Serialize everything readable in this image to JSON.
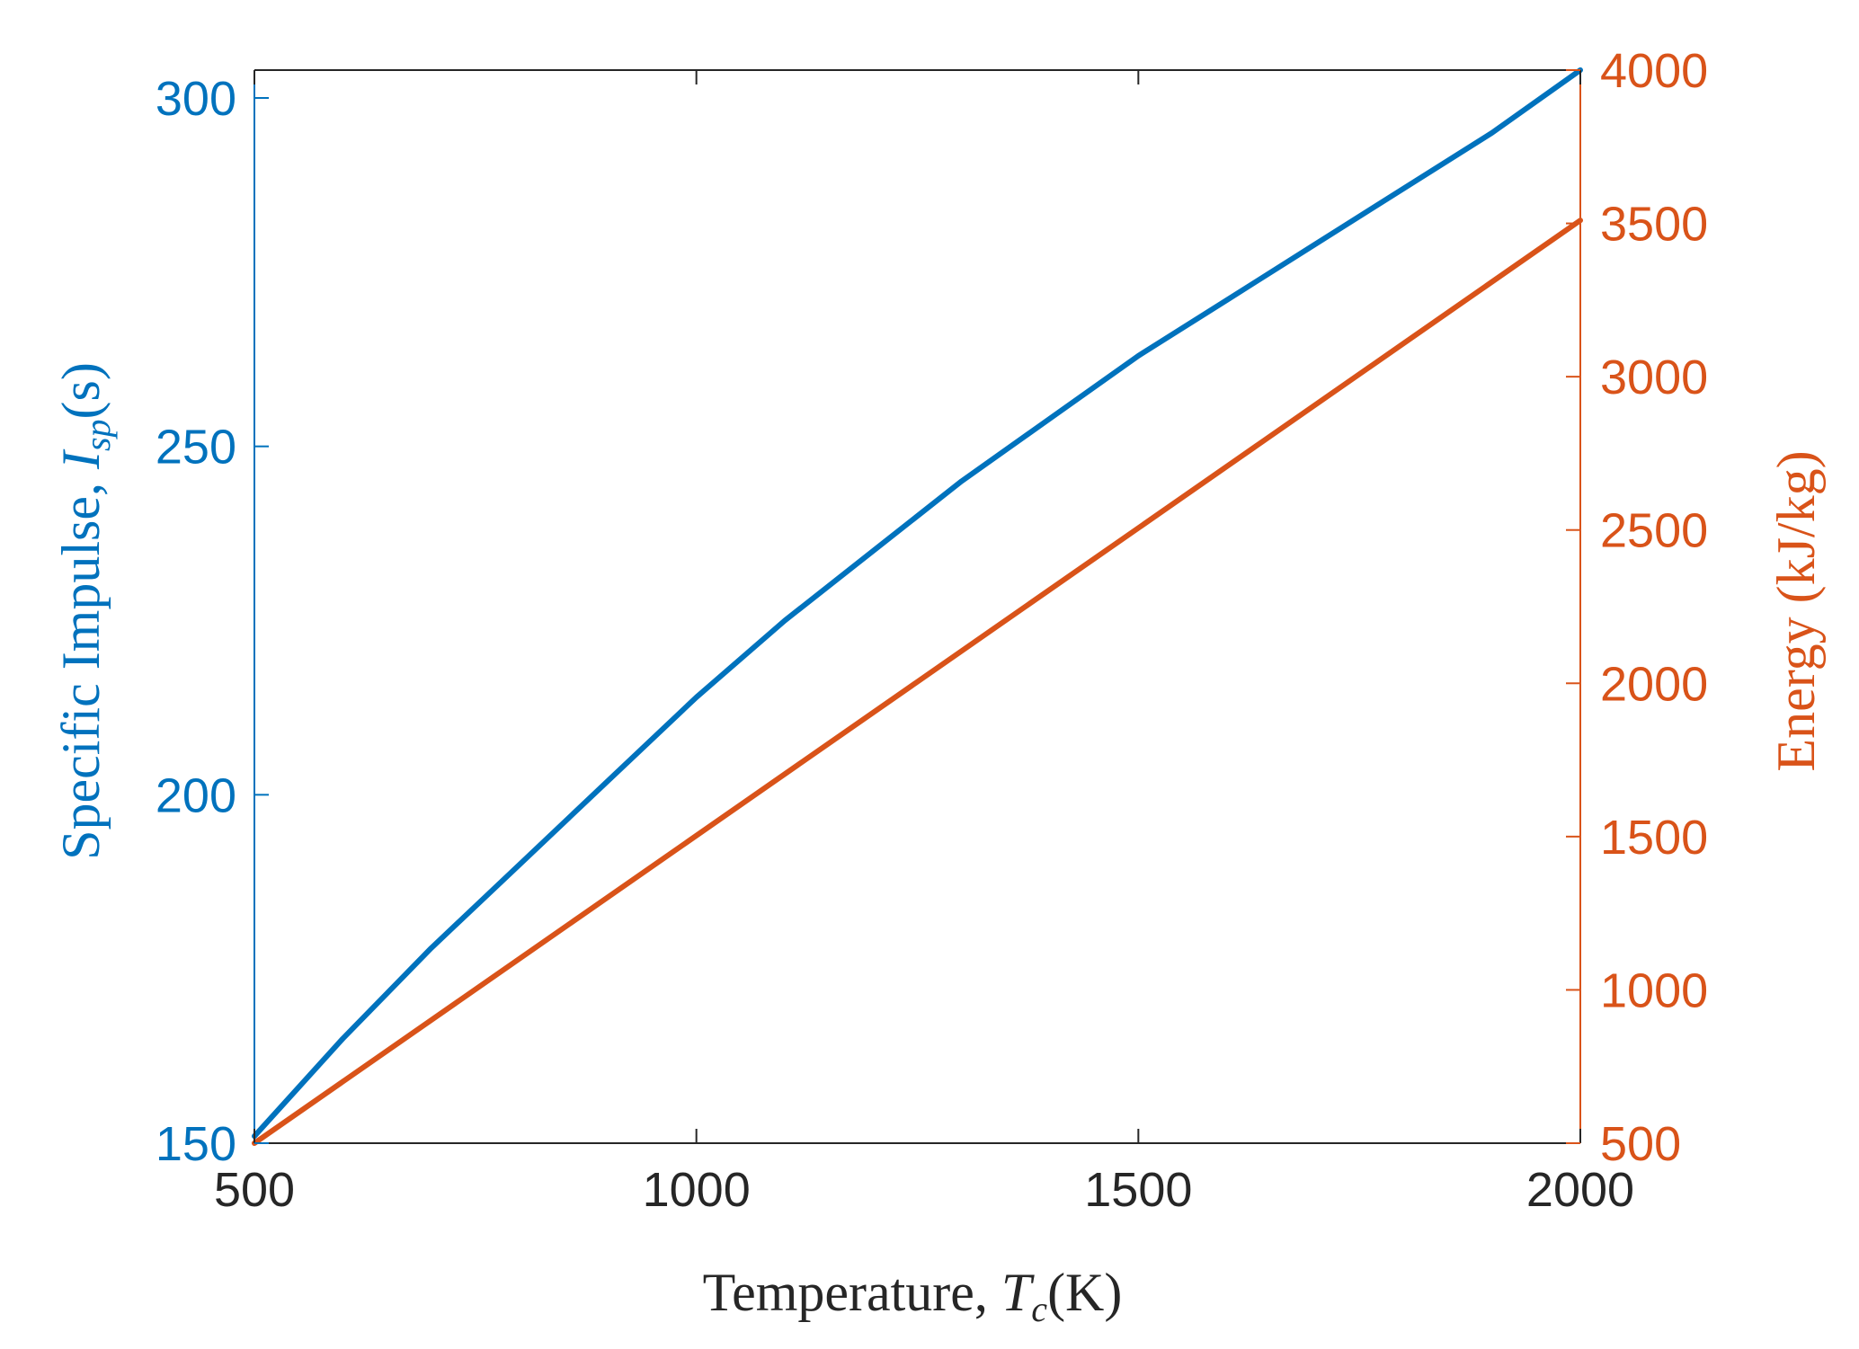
{
  "chart_data": {
    "type": "line",
    "title": "",
    "xlabel": {
      "text": "Temperature, ",
      "sym": "T",
      "sub": "c",
      "unit": "(K)"
    },
    "ylabel_left": {
      "text": "Specific Impulse, ",
      "sym": "I",
      "sub": "sp",
      "unit": "(s)"
    },
    "ylabel_right": "Energy (kJ/kg)",
    "xlim": [
      500,
      2000
    ],
    "ylim_left": [
      150,
      304
    ],
    "ylim_right": [
      500,
      4000
    ],
    "x_ticks": [
      "500",
      "1000",
      "1500",
      "2000"
    ],
    "y_left_ticks": [
      "150",
      "200",
      "250",
      "300"
    ],
    "y_right_ticks": [
      "500",
      "1000",
      "1500",
      "2000",
      "2500",
      "3000",
      "3500",
      "4000"
    ],
    "grid": false,
    "legend": "none",
    "colors": {
      "left": "#0072BD",
      "right": "#D95319",
      "axis": "#262626"
    },
    "series": [
      {
        "axis": "left",
        "x": [
          500,
          600,
          700,
          800,
          900,
          1000,
          1100,
          1200,
          1300,
          1400,
          1500,
          1600,
          1700,
          1800,
          1900,
          2000
        ],
        "y": [
          151,
          165,
          178,
          190,
          202,
          214,
          225,
          235,
          245,
          254,
          263,
          271,
          279,
          287,
          295,
          304
        ]
      },
      {
        "axis": "right",
        "x": [
          500,
          2000
        ],
        "y": [
          500,
          3510
        ]
      }
    ]
  }
}
